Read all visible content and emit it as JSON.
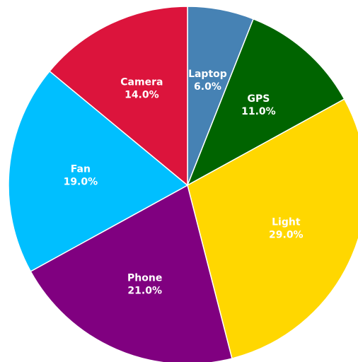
{
  "chart_data": {
    "type": "pie",
    "labels": [
      "Laptop",
      "GPS",
      "Light",
      "Phone",
      "Fan",
      "Camera"
    ],
    "values": [
      6.0,
      11.0,
      29.0,
      21.0,
      19.0,
      14.0
    ],
    "percent_labels": [
      "6.0%",
      "11.0%",
      "29.0%",
      "21.0%",
      "19.0%",
      "14.0%"
    ],
    "colors": [
      "#4682b4",
      "#006400",
      "#ffd700",
      "#800080",
      "#00bfff",
      "#dc143c"
    ],
    "title": "",
    "start_angle": "12 o'clock",
    "direction": "clockwise",
    "legend": "none"
  }
}
